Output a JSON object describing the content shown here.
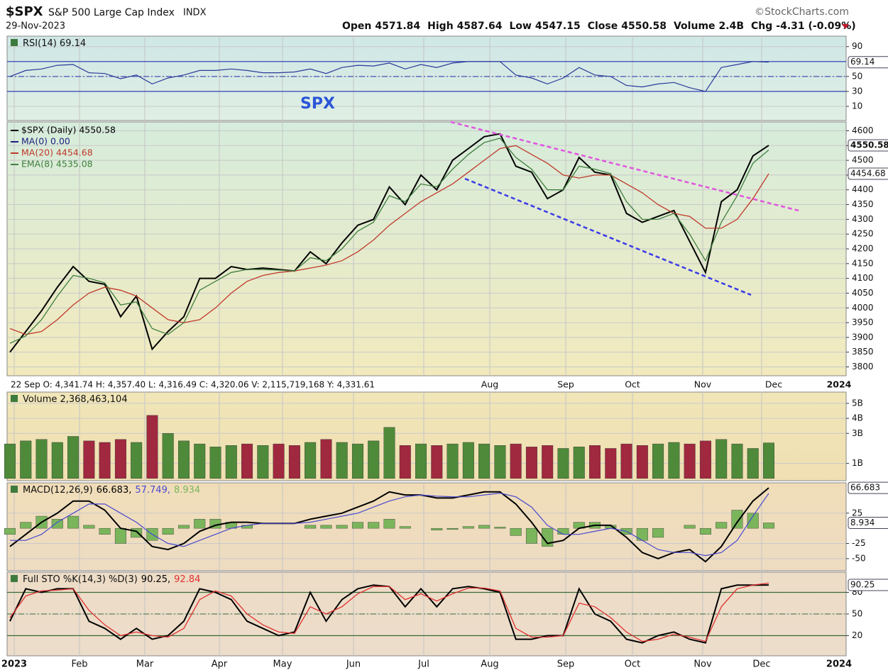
{
  "header": {
    "symbol": "$SPX",
    "name": "S&P 500 Large Cap Index",
    "exchange": "INDX",
    "date": "29-Nov-2023",
    "source": "©StockCharts.com",
    "quote": [
      {
        "label": "Open",
        "value": "4571.84"
      },
      {
        "label": "High",
        "value": "4587.64"
      },
      {
        "label": "Low",
        "value": "4547.15"
      },
      {
        "label": "Close",
        "value": "4550.58"
      },
      {
        "label": "Volume",
        "value": "2.4B"
      },
      {
        "label": "Chg",
        "value": "-4.31 (-0.09%)"
      }
    ],
    "annotation": "SPX",
    "info_bar": "22 Sep O: 4,341.74   H: 4,357.40   L: 4,316.49   C: 4,320.06   V: 2,115,719,168   Y: 4,331.61",
    "top_months": [
      "Aug",
      "Sep",
      "Oct",
      "Nov",
      "Dec",
      "2024"
    ],
    "bottom_months": [
      "2023",
      "Feb",
      "Mar",
      "Apr",
      "May",
      "Jun",
      "Jul",
      "Aug",
      "Sep",
      "Oct",
      "Nov",
      "Dec",
      "2024"
    ]
  },
  "chart_data": [
    {
      "type": "line",
      "title": "RSI(14) 69.14",
      "ylim": [
        -9,
        104
      ],
      "yticks": [
        10,
        30,
        50,
        90
      ],
      "levels": [
        30,
        70
      ],
      "dashed_levels": [
        50
      ],
      "level_color": "#2233aa",
      "series": [
        {
          "color": "#2a3a9a",
          "box": true,
          "values": [
            50,
            58,
            60,
            65,
            66,
            55,
            54,
            47,
            52,
            40,
            48,
            52,
            58,
            58,
            60,
            58,
            55,
            55,
            56,
            60,
            54,
            62,
            65,
            64,
            68,
            60,
            66,
            62,
            68,
            70,
            70,
            70,
            52,
            48,
            40,
            48,
            62,
            52,
            50,
            38,
            36,
            40,
            42,
            35,
            30,
            62,
            66,
            70,
            69.14
          ]
        }
      ]
    },
    {
      "type": "line",
      "legend": "stack",
      "ylim": [
        3770,
        4630
      ],
      "yticks": [
        3800,
        3850,
        3900,
        3950,
        4000,
        4050,
        4100,
        4150,
        4200,
        4250,
        4300,
        4350,
        4400,
        4450,
        4500,
        4550,
        4600
      ],
      "legend_extra": [
        {
          "name": "MA(0) 0.00",
          "color": "#1a237e"
        }
      ],
      "series": [
        {
          "name": "$SPX (Daily) 4550.58",
          "color": "#000000",
          "width": 2,
          "box": true,
          "values": [
            3850,
            3920,
            3990,
            4070,
            4140,
            4090,
            4080,
            3970,
            4040,
            3860,
            3920,
            3970,
            4100,
            4100,
            4140,
            4130,
            4135,
            4130,
            4125,
            4190,
            4150,
            4220,
            4280,
            4300,
            4410,
            4350,
            4450,
            4400,
            4500,
            4540,
            4580,
            4590,
            4480,
            4460,
            4370,
            4400,
            4510,
            4460,
            4450,
            4320,
            4290,
            4310,
            4330,
            4225,
            4120,
            4360,
            4400,
            4515,
            4550.58
          ]
        },
        {
          "name": "MA(20) 4454.68",
          "color": "#c0392b",
          "width": 1.3,
          "box": true,
          "values": [
            3930,
            3910,
            3920,
            3960,
            4010,
            4050,
            4070,
            4060,
            4040,
            4000,
            3960,
            3950,
            3960,
            4000,
            4050,
            4090,
            4110,
            4120,
            4125,
            4135,
            4145,
            4160,
            4190,
            4230,
            4280,
            4320,
            4360,
            4390,
            4420,
            4460,
            4500,
            4540,
            4550,
            4520,
            4490,
            4450,
            4440,
            4450,
            4450,
            4420,
            4390,
            4350,
            4320,
            4310,
            4270,
            4270,
            4300,
            4370,
            4454.68
          ]
        },
        {
          "name": "EMA(8) 4535.08",
          "color": "#3f7f3f",
          "width": 1.3,
          "values": [
            3880,
            3905,
            3960,
            4040,
            4110,
            4100,
            4085,
            4010,
            4020,
            3930,
            3910,
            3950,
            4060,
            4090,
            4120,
            4130,
            4130,
            4128,
            4125,
            4170,
            4160,
            4200,
            4260,
            4290,
            4380,
            4360,
            4420,
            4410,
            4470,
            4520,
            4560,
            4575,
            4510,
            4470,
            4400,
            4400,
            4480,
            4470,
            4455,
            4360,
            4300,
            4300,
            4320,
            4250,
            4160,
            4290,
            4380,
            4490,
            4535.08
          ]
        }
      ]
    },
    {
      "type": "bar",
      "title": "Volume 2,368,463,104",
      "ylim": [
        -0.15,
        5.75
      ],
      "yticks": [
        {
          "value": 1,
          "label": "1B"
        },
        {
          "value": 3,
          "label": "3B"
        },
        {
          "value": 4,
          "label": "4B"
        },
        {
          "value": 5,
          "label": "5B"
        }
      ],
      "series": [
        {
          "type": "bar",
          "up_color": "#4e8a3a",
          "down_color": "#a0283f",
          "values": [
            2.3,
            2.5,
            2.6,
            2.4,
            2.8,
            2.5,
            2.4,
            2.6,
            2.4,
            4.2,
            3.0,
            2.5,
            2.3,
            2.1,
            2.2,
            2.3,
            2.2,
            2.3,
            2.2,
            2.4,
            2.6,
            2.4,
            2.3,
            2.5,
            3.4,
            2.2,
            2.3,
            2.2,
            2.3,
            2.4,
            2.3,
            2.2,
            2.3,
            2.1,
            2.2,
            2.0,
            2.1,
            2.2,
            2.0,
            2.3,
            2.2,
            2.3,
            2.4,
            2.3,
            2.5,
            2.6,
            2.3,
            2.0,
            2.37
          ]
        }
      ]
    },
    {
      "type": "line",
      "title": "MACD(12,26,9)",
      "ylim": [
        -70,
        75
      ],
      "yticks": [
        -50,
        -25,
        25
      ],
      "series": [
        {
          "name": "8.934",
          "type": "bar",
          "color": "#7ab55c",
          "box": true,
          "values": [
            -10,
            10,
            20,
            15,
            20,
            5,
            -10,
            -25,
            -15,
            -20,
            -10,
            5,
            15,
            15,
            10,
            5,
            0,
            0,
            0,
            5,
            5,
            5,
            10,
            10,
            15,
            3,
            0,
            -3,
            -2,
            3,
            5,
            2,
            -12,
            -25,
            -30,
            -10,
            10,
            10,
            5,
            -10,
            -20,
            -15,
            0,
            5,
            -10,
            10,
            30,
            25,
            8.934
          ]
        },
        {
          "name": "66.683,",
          "color": "#000000",
          "width": 2,
          "box": true,
          "values": [
            -30,
            -10,
            10,
            25,
            45,
            45,
            30,
            0,
            -5,
            -30,
            -35,
            -25,
            -5,
            5,
            10,
            10,
            8,
            8,
            8,
            15,
            20,
            25,
            35,
            45,
            60,
            55,
            55,
            50,
            50,
            55,
            60,
            60,
            40,
            10,
            -25,
            -20,
            0,
            5,
            5,
            -15,
            -40,
            -50,
            -40,
            -35,
            -55,
            -30,
            10,
            45,
            66.683
          ]
        },
        {
          "name": "57.749,",
          "color": "#4a4ad0",
          "width": 1.2,
          "values": [
            -20,
            -20,
            -10,
            10,
            25,
            40,
            40,
            25,
            10,
            -10,
            -25,
            -30,
            -20,
            -10,
            0,
            5,
            8,
            8,
            8,
            10,
            15,
            20,
            25,
            35,
            45,
            52,
            55,
            53,
            52,
            52,
            55,
            58,
            52,
            35,
            5,
            -10,
            -10,
            -5,
            0,
            -5,
            -20,
            -35,
            -40,
            -40,
            -45,
            -40,
            -20,
            20,
            57.749
          ]
        }
      ]
    },
    {
      "type": "line",
      "title": "Full STO %K(14,3) %D(3)",
      "ylim": [
        -8,
        108
      ],
      "yticks": [
        20,
        50,
        80
      ],
      "levels": [
        20,
        80
      ],
      "dashed_levels": [
        50
      ],
      "level_color": "#3a6a3a",
      "series": [
        {
          "name": "90.25,",
          "color": "#000000",
          "width": 2,
          "box": true,
          "values": [
            40,
            85,
            80,
            85,
            85,
            40,
            30,
            15,
            30,
            15,
            20,
            40,
            85,
            80,
            70,
            40,
            30,
            20,
            25,
            80,
            40,
            70,
            85,
            90,
            88,
            60,
            85,
            60,
            85,
            88,
            85,
            80,
            15,
            15,
            20,
            20,
            85,
            50,
            40,
            15,
            10,
            20,
            25,
            15,
            10,
            85,
            90,
            90,
            90.25
          ]
        },
        {
          "name": "92.84",
          "color": "#e03030",
          "width": 1.3,
          "values": [
            45,
            75,
            82,
            83,
            85,
            55,
            35,
            20,
            25,
            20,
            18,
            30,
            70,
            82,
            75,
            50,
            35,
            25,
            23,
            60,
            50,
            60,
            78,
            88,
            88,
            70,
            78,
            68,
            78,
            86,
            86,
            82,
            30,
            18,
            18,
            20,
            65,
            60,
            45,
            25,
            12,
            15,
            22,
            18,
            12,
            60,
            85,
            90,
            92.84
          ]
        }
      ]
    }
  ]
}
